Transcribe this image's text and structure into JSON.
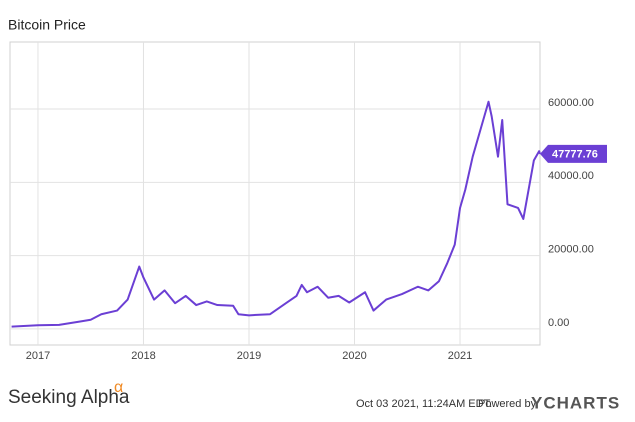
{
  "chart_data": {
    "type": "line",
    "title": "Bitcoin Price",
    "x": [
      2016.75,
      2017.0,
      2017.2,
      2017.4,
      2017.5,
      2017.6,
      2017.75,
      2017.85,
      2017.96,
      2018.0,
      2018.1,
      2018.2,
      2018.3,
      2018.4,
      2018.5,
      2018.6,
      2018.7,
      2018.85,
      2018.9,
      2019.0,
      2019.2,
      2019.35,
      2019.45,
      2019.5,
      2019.55,
      2019.65,
      2019.75,
      2019.85,
      2019.95,
      2020.1,
      2020.18,
      2020.3,
      2020.45,
      2020.6,
      2020.7,
      2020.8,
      2020.88,
      2020.95,
      2021.0,
      2021.05,
      2021.12,
      2021.2,
      2021.27,
      2021.3,
      2021.36,
      2021.4,
      2021.45,
      2021.55,
      2021.6,
      2021.7,
      2021.75,
      2021.758
    ],
    "series": [
      {
        "name": "Bitcoin Price",
        "color": "#6b3fd4",
        "values": [
          600,
          1000,
          1100,
          2000,
          2500,
          4000,
          5000,
          8000,
          17000,
          14000,
          8000,
          10500,
          7000,
          9000,
          6500,
          7500,
          6500,
          6300,
          4000,
          3700,
          4000,
          7000,
          9000,
          12000,
          10000,
          11500,
          8500,
          9000,
          7200,
          10000,
          5000,
          8000,
          9500,
          11500,
          10500,
          13000,
          18000,
          23000,
          33000,
          38000,
          47000,
          55000,
          62000,
          58000,
          47000,
          57000,
          34000,
          33000,
          30000,
          46000,
          48500,
          47777.76
        ]
      }
    ],
    "xlim": [
      2016.735,
      2021.758
    ],
    "xticks": [
      2017,
      2018,
      2019,
      2020,
      2021
    ],
    "ylim": [
      -4400,
      78300
    ],
    "yticks": [
      {
        "value": 0,
        "label": "0.00"
      },
      {
        "value": 20000,
        "label": "20000.00"
      },
      {
        "value": 40000,
        "label": "40000.00"
      },
      {
        "value": 60000,
        "label": "60000.00"
      }
    ],
    "grid": true
  },
  "footer": {
    "brand": "Seeking Alpha",
    "brand_mark": "α",
    "timestamp": "Oct 03 2021, 11:24AM EDT.",
    "powered_by": "Powered by",
    "provider": "YCHARTS"
  }
}
